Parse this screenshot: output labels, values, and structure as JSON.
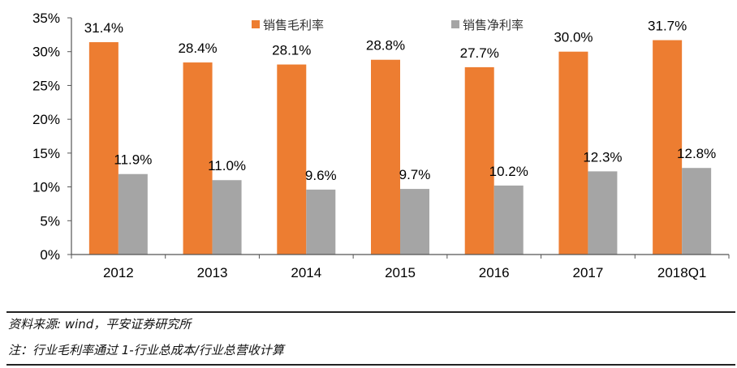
{
  "chart_data": {
    "type": "bar",
    "categories": [
      "2012",
      "2013",
      "2014",
      "2015",
      "2016",
      "2017",
      "2018Q1"
    ],
    "series": [
      {
        "name": "销售毛利率",
        "color": "#ED7D31",
        "values": [
          31.4,
          28.4,
          28.1,
          28.8,
          27.7,
          30.0,
          31.7
        ],
        "labels": [
          "31.4%",
          "28.4%",
          "28.1%",
          "28.8%",
          "27.7%",
          "30.0%",
          "31.7%"
        ]
      },
      {
        "name": "销售净利率",
        "color": "#A5A5A5",
        "values": [
          11.9,
          11.0,
          9.6,
          9.7,
          10.2,
          12.3,
          12.8
        ],
        "labels": [
          "11.9%",
          "11.0%",
          "9.6%",
          "9.7%",
          "10.2%",
          "12.3%",
          "12.8%"
        ]
      }
    ],
    "yticks": [
      "0%",
      "5%",
      "10%",
      "15%",
      "20%",
      "25%",
      "30%",
      "35%"
    ],
    "ylim": [
      0,
      35
    ],
    "grid": false,
    "legend": "top"
  },
  "footer": {
    "source": "资料来源: wind，平安证券研究所",
    "note": "注：行业毛利率通过 1-行业总成本/行业总营收计算"
  }
}
